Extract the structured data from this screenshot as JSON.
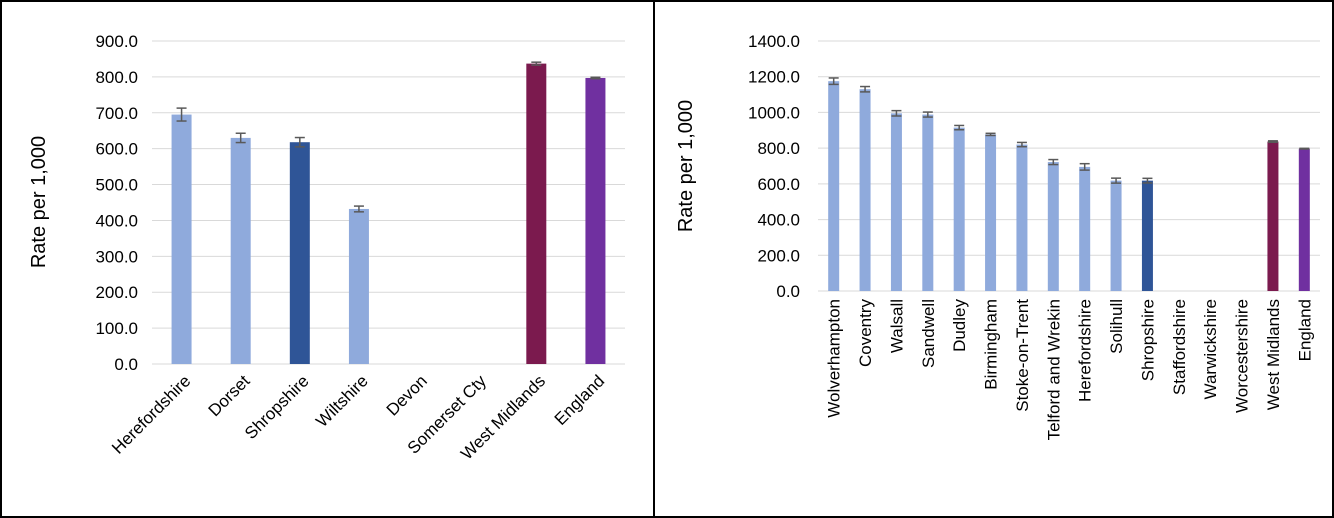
{
  "chart_data": [
    {
      "type": "bar",
      "ylabel": "Rate per 1,000",
      "ylim": [
        0,
        900
      ],
      "yticks": [
        "0.0",
        "100.0",
        "200.0",
        "300.0",
        "400.0",
        "500.0",
        "600.0",
        "700.0",
        "800.0",
        "900.0"
      ],
      "grid": true,
      "categories": [
        "Herefordshire",
        "Dorset",
        "Shropshire",
        "Wiltshire",
        "Devon",
        "Somerset Cty",
        "West Midlands",
        "England"
      ],
      "values": [
        695,
        630,
        618,
        432,
        null,
        null,
        837,
        797
      ],
      "error_low": [
        677,
        617,
        605,
        424,
        null,
        null,
        833,
        795
      ],
      "error_high": [
        713,
        643,
        631,
        440,
        null,
        null,
        841,
        799
      ],
      "colors": [
        "#8faadc",
        "#8faadc",
        "#2f5597",
        "#8faadc",
        null,
        null,
        "#7b1a4e",
        "#7030a0"
      ]
    },
    {
      "type": "bar",
      "ylabel": "Rate per 1,000",
      "ylim": [
        0,
        1400
      ],
      "yticks": [
        "0.0",
        "200.0",
        "400.0",
        "600.0",
        "800.0",
        "1000.0",
        "1200.0",
        "1400.0"
      ],
      "grid": true,
      "categories": [
        "Wolverhampton",
        "Coventry",
        "Walsall",
        "Sandwell",
        "Dudley",
        "Birmingham",
        "Stoke-on-Trent",
        "Telford and Wrekin",
        "Herefordshire",
        "Solihull",
        "Shropshire",
        "Staffordshire",
        "Warwickshire",
        "Worcestershire",
        "West Midlands",
        "England"
      ],
      "values": [
        1175,
        1130,
        995,
        988,
        915,
        877,
        820,
        722,
        695,
        618,
        618,
        null,
        null,
        null,
        837,
        797
      ],
      "error_low": [
        1157,
        1115,
        980,
        974,
        903,
        871,
        808,
        708,
        677,
        604,
        605,
        null,
        null,
        null,
        833,
        795
      ],
      "error_high": [
        1193,
        1145,
        1010,
        1002,
        927,
        883,
        832,
        736,
        713,
        632,
        631,
        null,
        null,
        null,
        841,
        799
      ],
      "colors": [
        "#8faadc",
        "#8faadc",
        "#8faadc",
        "#8faadc",
        "#8faadc",
        "#8faadc",
        "#8faadc",
        "#8faadc",
        "#8faadc",
        "#8faadc",
        "#2f5597",
        null,
        null,
        null,
        "#7b1a4e",
        "#7030a0"
      ]
    }
  ]
}
